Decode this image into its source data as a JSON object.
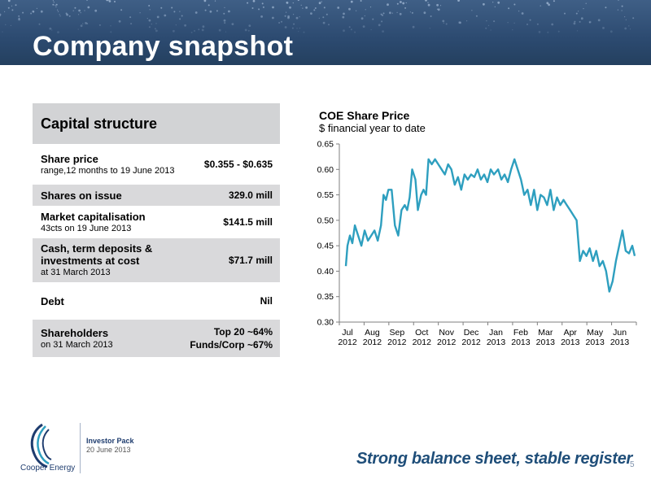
{
  "header": {
    "title": "Company snapshot"
  },
  "capital_structure": {
    "title": "Capital structure",
    "rows": [
      {
        "label": "Share price",
        "sub": "range,12 months to 19 June 2013",
        "value": "$0.355 - $0.635"
      },
      {
        "label": "Shares on issue",
        "sub": "",
        "value": "329.0 mill"
      },
      {
        "label": "Market capitalisation",
        "sub": "43cts  on 19 June 2013",
        "value": "$141.5 mill"
      },
      {
        "label": "Cash, term deposits & investments at cost",
        "sub": "at 31 March 2013",
        "value": "$71.7 mill"
      },
      {
        "label": "Debt",
        "sub": "",
        "value": "Nil"
      },
      {
        "label": "Shareholders",
        "sub": "on 31 March 2013",
        "value_lines": [
          "Top 20 ~64%",
          "Funds/Corp ~67%"
        ]
      }
    ]
  },
  "chart_data": {
    "type": "line",
    "title": "COE Share Price",
    "subtitle": "$ financial year to date",
    "ylim": [
      0.3,
      0.65
    ],
    "yticks": [
      "0.65",
      "0.60",
      "0.55",
      "0.50",
      "0.45",
      "0.40",
      "0.35",
      "0.30"
    ],
    "ytick_values": [
      0.65,
      0.6,
      0.55,
      0.5,
      0.45,
      0.4,
      0.35,
      0.3
    ],
    "x_categories": [
      {
        "month": "Jul",
        "year": "2012"
      },
      {
        "month": "Aug",
        "year": "2012"
      },
      {
        "month": "Sep",
        "year": "2012"
      },
      {
        "month": "Oct",
        "year": "2012"
      },
      {
        "month": "Nov",
        "year": "2012"
      },
      {
        "month": "Dec",
        "year": "2012"
      },
      {
        "month": "Jan",
        "year": "2013"
      },
      {
        "month": "Feb",
        "year": "2013"
      },
      {
        "month": "Mar",
        "year": "2013"
      },
      {
        "month": "Apr",
        "year": "2013"
      },
      {
        "month": "May",
        "year": "2013"
      },
      {
        "month": "Jun",
        "year": "2013"
      }
    ],
    "grid": false,
    "line_color": "#2e9fbf",
    "series": [
      {
        "points": [
          [
            "2012-07-01",
            0.41
          ],
          [
            "2012-07-03",
            0.45
          ],
          [
            "2012-07-06",
            0.47
          ],
          [
            "2012-07-09",
            0.455
          ],
          [
            "2012-07-12",
            0.49
          ],
          [
            "2012-07-16",
            0.47
          ],
          [
            "2012-07-20",
            0.45
          ],
          [
            "2012-07-24",
            0.48
          ],
          [
            "2012-07-28",
            0.46
          ],
          [
            "2012-08-01",
            0.47
          ],
          [
            "2012-08-05",
            0.48
          ],
          [
            "2012-08-09",
            0.46
          ],
          [
            "2012-08-13",
            0.49
          ],
          [
            "2012-08-16",
            0.55
          ],
          [
            "2012-08-19",
            0.54
          ],
          [
            "2012-08-22",
            0.56
          ],
          [
            "2012-08-26",
            0.56
          ],
          [
            "2012-08-30",
            0.49
          ],
          [
            "2012-09-03",
            0.47
          ],
          [
            "2012-09-07",
            0.52
          ],
          [
            "2012-09-11",
            0.53
          ],
          [
            "2012-09-14",
            0.52
          ],
          [
            "2012-09-17",
            0.545
          ],
          [
            "2012-09-20",
            0.6
          ],
          [
            "2012-09-24",
            0.58
          ],
          [
            "2012-09-27",
            0.52
          ],
          [
            "2012-10-01",
            0.55
          ],
          [
            "2012-10-04",
            0.56
          ],
          [
            "2012-10-07",
            0.55
          ],
          [
            "2012-10-10",
            0.62
          ],
          [
            "2012-10-14",
            0.61
          ],
          [
            "2012-10-18",
            0.62
          ],
          [
            "2012-10-22",
            0.61
          ],
          [
            "2012-10-26",
            0.6
          ],
          [
            "2012-10-30",
            0.59
          ],
          [
            "2012-11-03",
            0.61
          ],
          [
            "2012-11-07",
            0.6
          ],
          [
            "2012-11-11",
            0.57
          ],
          [
            "2012-11-15",
            0.585
          ],
          [
            "2012-11-19",
            0.56
          ],
          [
            "2012-11-23",
            0.59
          ],
          [
            "2012-11-27",
            0.58
          ],
          [
            "2012-12-01",
            0.59
          ],
          [
            "2012-12-05",
            0.585
          ],
          [
            "2012-12-09",
            0.6
          ],
          [
            "2012-12-13",
            0.58
          ],
          [
            "2012-12-17",
            0.59
          ],
          [
            "2012-12-21",
            0.575
          ],
          [
            "2012-12-25",
            0.6
          ],
          [
            "2012-12-29",
            0.59
          ],
          [
            "2013-01-03",
            0.6
          ],
          [
            "2013-01-07",
            0.58
          ],
          [
            "2013-01-11",
            0.59
          ],
          [
            "2013-01-15",
            0.575
          ],
          [
            "2013-01-19",
            0.6
          ],
          [
            "2013-01-23",
            0.62
          ],
          [
            "2013-01-27",
            0.6
          ],
          [
            "2013-01-31",
            0.58
          ],
          [
            "2013-02-04",
            0.55
          ],
          [
            "2013-02-08",
            0.56
          ],
          [
            "2013-02-12",
            0.53
          ],
          [
            "2013-02-16",
            0.56
          ],
          [
            "2013-02-20",
            0.52
          ],
          [
            "2013-02-24",
            0.55
          ],
          [
            "2013-02-28",
            0.545
          ],
          [
            "2013-03-04",
            0.53
          ],
          [
            "2013-03-08",
            0.56
          ],
          [
            "2013-03-12",
            0.52
          ],
          [
            "2013-03-16",
            0.545
          ],
          [
            "2013-03-20",
            0.53
          ],
          [
            "2013-03-24",
            0.54
          ],
          [
            "2013-03-28",
            0.53
          ],
          [
            "2013-04-01",
            0.52
          ],
          [
            "2013-04-05",
            0.51
          ],
          [
            "2013-04-09",
            0.5
          ],
          [
            "2013-04-13",
            0.42
          ],
          [
            "2013-04-17",
            0.44
          ],
          [
            "2013-04-21",
            0.43
          ],
          [
            "2013-04-25",
            0.445
          ],
          [
            "2013-04-29",
            0.42
          ],
          [
            "2013-05-03",
            0.44
          ],
          [
            "2013-05-07",
            0.41
          ],
          [
            "2013-05-11",
            0.42
          ],
          [
            "2013-05-15",
            0.4
          ],
          [
            "2013-05-19",
            0.36
          ],
          [
            "2013-05-23",
            0.38
          ],
          [
            "2013-05-27",
            0.42
          ],
          [
            "2013-05-31",
            0.45
          ],
          [
            "2013-06-04",
            0.48
          ],
          [
            "2013-06-08",
            0.44
          ],
          [
            "2013-06-12",
            0.435
          ],
          [
            "2013-06-16",
            0.45
          ],
          [
            "2013-06-19",
            0.43
          ]
        ]
      }
    ]
  },
  "footer": {
    "logo_text": "Cooper Energy",
    "pack_name": "Investor Pack",
    "pack_date": "20 June 2013",
    "tagline": "Strong balance sheet, stable register",
    "page_number": "5"
  },
  "colors": {
    "header_bg": "#2c4a70",
    "line": "#2e9fbf",
    "tagline": "#1f4e79"
  }
}
